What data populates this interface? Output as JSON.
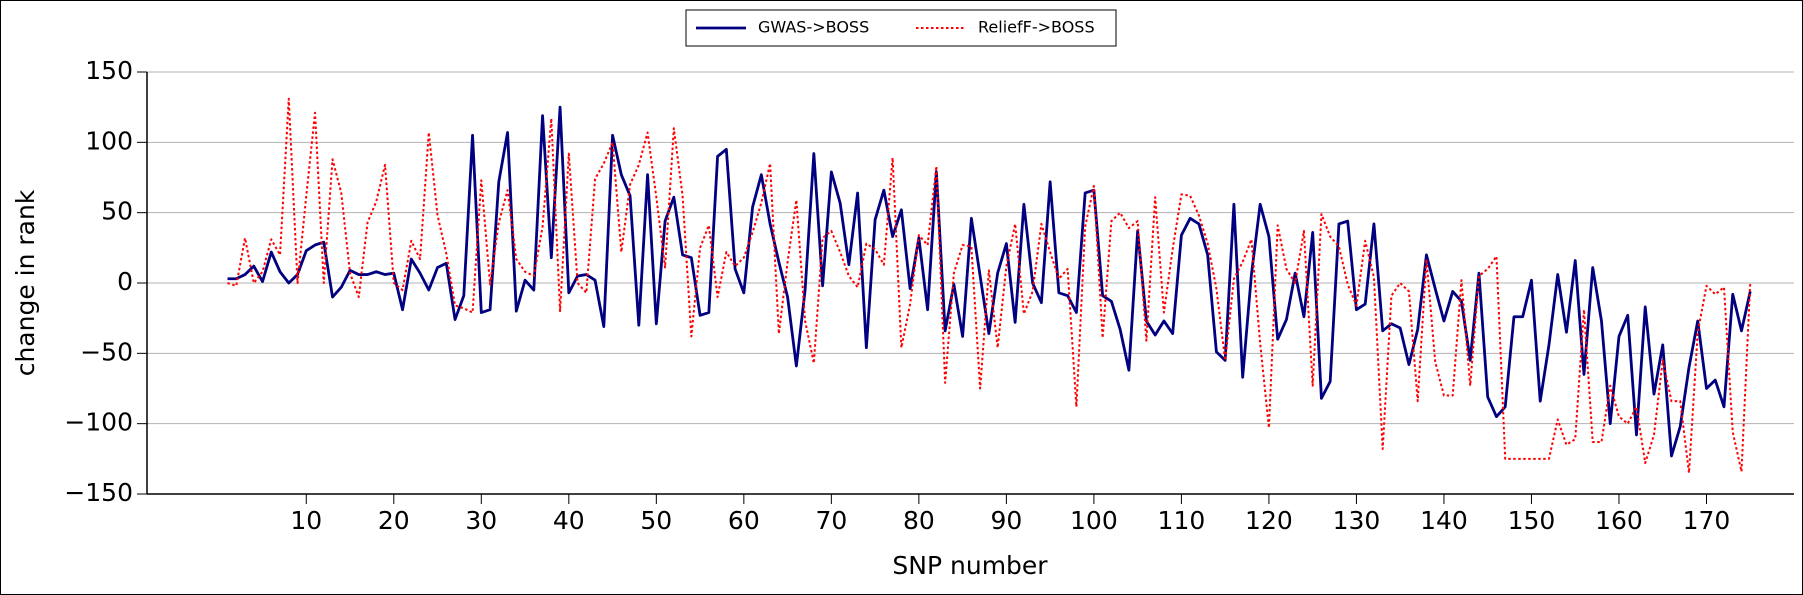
{
  "chart_data": {
    "type": "line",
    "x_label": "SNP number",
    "y_label": "change in rank",
    "x": [
      1,
      2,
      3,
      4,
      5,
      6,
      7,
      8,
      9,
      10,
      11,
      12,
      13,
      14,
      15,
      16,
      17,
      18,
      19,
      20,
      21,
      22,
      23,
      24,
      25,
      26,
      27,
      28,
      29,
      30,
      31,
      32,
      33,
      34,
      35,
      36,
      37,
      38,
      39,
      40,
      41,
      42,
      43,
      44,
      45,
      46,
      47,
      48,
      49,
      50,
      51,
      52,
      53,
      54,
      55,
      56,
      57,
      58,
      59,
      60,
      61,
      62,
      63,
      64,
      65,
      66,
      67,
      68,
      69,
      70,
      71,
      72,
      73,
      74,
      75,
      76,
      77,
      78,
      79,
      80,
      81,
      82,
      83,
      84,
      85,
      86,
      87,
      88,
      89,
      90,
      91,
      92,
      93,
      94,
      95,
      96,
      97,
      98,
      99,
      100,
      101,
      102,
      103,
      104,
      105,
      106,
      107,
      108,
      109,
      110,
      111,
      112,
      113,
      114,
      115,
      116,
      117,
      118,
      119,
      120,
      121,
      122,
      123,
      124,
      125,
      126,
      127,
      128,
      129,
      130,
      131,
      132,
      133,
      134,
      135,
      136,
      137,
      138,
      139,
      140,
      141,
      142,
      143,
      144,
      145,
      146,
      147,
      148,
      149,
      150,
      151,
      152,
      153,
      154,
      155,
      156,
      157,
      158,
      159,
      160,
      161,
      162,
      163,
      164,
      165,
      166,
      167,
      168,
      169,
      170,
      171,
      172,
      173,
      174,
      175
    ],
    "series": [
      {
        "name": "GWAS->BOSS",
        "color": "#000080",
        "style": "solid",
        "values": [
          3,
          3,
          6,
          12,
          1,
          22,
          8,
          0,
          6,
          23,
          27,
          29,
          -10,
          -3,
          9,
          6,
          6,
          8,
          6,
          7,
          -19,
          17,
          7,
          -5,
          11,
          14,
          -26,
          -9,
          105,
          -21,
          -19,
          72,
          107,
          -20,
          2,
          -5,
          119,
          18,
          125,
          -7,
          5,
          6,
          2,
          -31,
          105,
          77,
          62,
          -30,
          77,
          -29,
          44,
          61,
          20,
          18,
          -23,
          -21,
          90,
          95,
          10,
          -7,
          54,
          77,
          42,
          15,
          -10,
          -59,
          -5,
          92,
          -2,
          79,
          57,
          13,
          64,
          -46,
          45,
          66,
          33,
          52,
          -4,
          32,
          -19,
          79,
          -34,
          -1,
          -38,
          46,
          5,
          -36,
          7,
          28,
          -28,
          56,
          0,
          -14,
          72,
          -7,
          -9,
          -21,
          64,
          66,
          -9,
          -13,
          -33,
          -62,
          37,
          -27,
          -37,
          -27,
          -36,
          34,
          46,
          42,
          20,
          -49,
          -55,
          56,
          -67,
          6,
          56,
          33,
          -40,
          -26,
          7,
          -24,
          36,
          -82,
          -70,
          42,
          44,
          -19,
          -15,
          42,
          -34,
          -29,
          -32,
          -58,
          -33,
          20,
          -4,
          -27,
          -6,
          -13,
          -55,
          7,
          -81,
          -95,
          -88,
          -24,
          -24,
          2,
          -84,
          -44,
          6,
          -35,
          16,
          -65,
          11,
          -27,
          -100,
          -38,
          -23,
          -108,
          -17,
          -79,
          -44,
          -123,
          -102,
          -60,
          -27,
          -75,
          -69,
          -88,
          -8,
          -34,
          -6
        ]
      },
      {
        "name": "ReliefF->BOSS",
        "color": "#ff0000",
        "style": "dotted",
        "values": [
          0,
          -2,
          32,
          0,
          8,
          31,
          20,
          131,
          0,
          62,
          121,
          0,
          88,
          64,
          7,
          -10,
          43,
          58,
          84,
          0,
          -5,
          30,
          17,
          107,
          48,
          21,
          -16,
          -18,
          -21,
          73,
          -1,
          43,
          66,
          17,
          8,
          5,
          40,
          117,
          -20,
          92,
          0,
          -7,
          74,
          85,
          100,
          22,
          70,
          84,
          107,
          61,
          11,
          110,
          62,
          -38,
          25,
          41,
          -10,
          22,
          12,
          18,
          36,
          57,
          85,
          -36,
          15,
          59,
          -27,
          -57,
          32,
          37,
          22,
          5,
          -3,
          28,
          24,
          13,
          89,
          -46,
          -15,
          34,
          27,
          83,
          -71,
          7,
          27,
          26,
          -75,
          9,
          -46,
          12,
          42,
          -22,
          -6,
          42,
          22,
          3,
          10,
          -88,
          40,
          69,
          -39,
          44,
          50,
          39,
          44,
          -41,
          61,
          -21,
          24,
          63,
          62,
          48,
          28,
          -4,
          -55,
          3,
          15,
          31,
          -43,
          -103,
          41,
          10,
          0,
          37,
          -73,
          49,
          33,
          26,
          -1,
          -16,
          30,
          4,
          -118,
          -9,
          0,
          -6,
          -84,
          17,
          -56,
          -80,
          -80,
          2,
          -73,
          5,
          10,
          19,
          -125,
          -125,
          -125,
          -125,
          -125,
          -125,
          -97,
          -115,
          -111,
          -19,
          -113,
          -113,
          -73,
          -95,
          -100,
          -88,
          -128,
          -108,
          -55,
          -84,
          -84,
          -135,
          -35,
          -2,
          -8,
          -3,
          -106,
          -134,
          0
        ]
      }
    ],
    "xlim": [
      -8.2,
      180
    ],
    "xticks": [
      10,
      20,
      30,
      40,
      50,
      60,
      70,
      80,
      90,
      100,
      110,
      120,
      130,
      140,
      150,
      160,
      170
    ],
    "ylim": [
      -150,
      150
    ],
    "yticks": [
      {
        "value": -150,
        "label": "−150"
      },
      {
        "value": -100,
        "label": "−100"
      },
      {
        "value": -50,
        "label": "−50"
      },
      0,
      50,
      100,
      150
    ],
    "grid": true,
    "legend": "top"
  }
}
